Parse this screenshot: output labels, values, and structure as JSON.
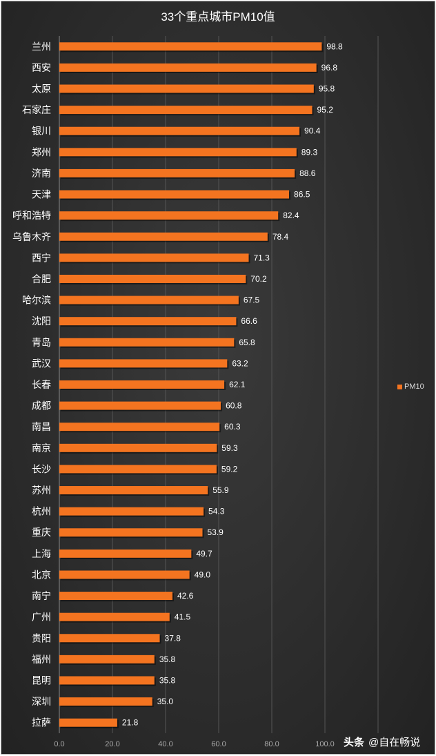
{
  "chart_data": {
    "type": "bar",
    "orientation": "horizontal",
    "title": "33个重点城市PM10值",
    "xlabel": "",
    "ylabel": "",
    "xlim": [
      0,
      120
    ],
    "xticks": [
      "0.0",
      "20.0",
      "40.0",
      "60.0",
      "80.0",
      "100.0"
    ],
    "grid": true,
    "legend": {
      "position": "right",
      "entries": [
        "PM10"
      ]
    },
    "color": "#f47420",
    "categories": [
      "兰州",
      "西安",
      "太原",
      "石家庄",
      "银川",
      "郑州",
      "济南",
      "天津",
      "呼和浩特",
      "乌鲁木齐",
      "西宁",
      "合肥",
      "哈尔滨",
      "沈阳",
      "青岛",
      "武汉",
      "长春",
      "成都",
      "南昌",
      "南京",
      "长沙",
      "苏州",
      "杭州",
      "重庆",
      "上海",
      "北京",
      "南宁",
      "广州",
      "贵阳",
      "福州",
      "昆明",
      "深圳",
      "拉萨"
    ],
    "series": [
      {
        "name": "PM10",
        "values": [
          98.8,
          96.8,
          95.8,
          95.2,
          90.4,
          89.3,
          88.6,
          86.5,
          82.4,
          78.4,
          71.3,
          70.2,
          67.5,
          66.6,
          65.8,
          63.2,
          62.1,
          60.8,
          60.3,
          59.3,
          59.2,
          55.9,
          54.3,
          53.9,
          49.7,
          49.0,
          42.6,
          41.5,
          37.8,
          35.8,
          35.8,
          35.0,
          21.8
        ]
      }
    ]
  },
  "watermark": {
    "platform": "头条",
    "author": "@自在畅说"
  }
}
